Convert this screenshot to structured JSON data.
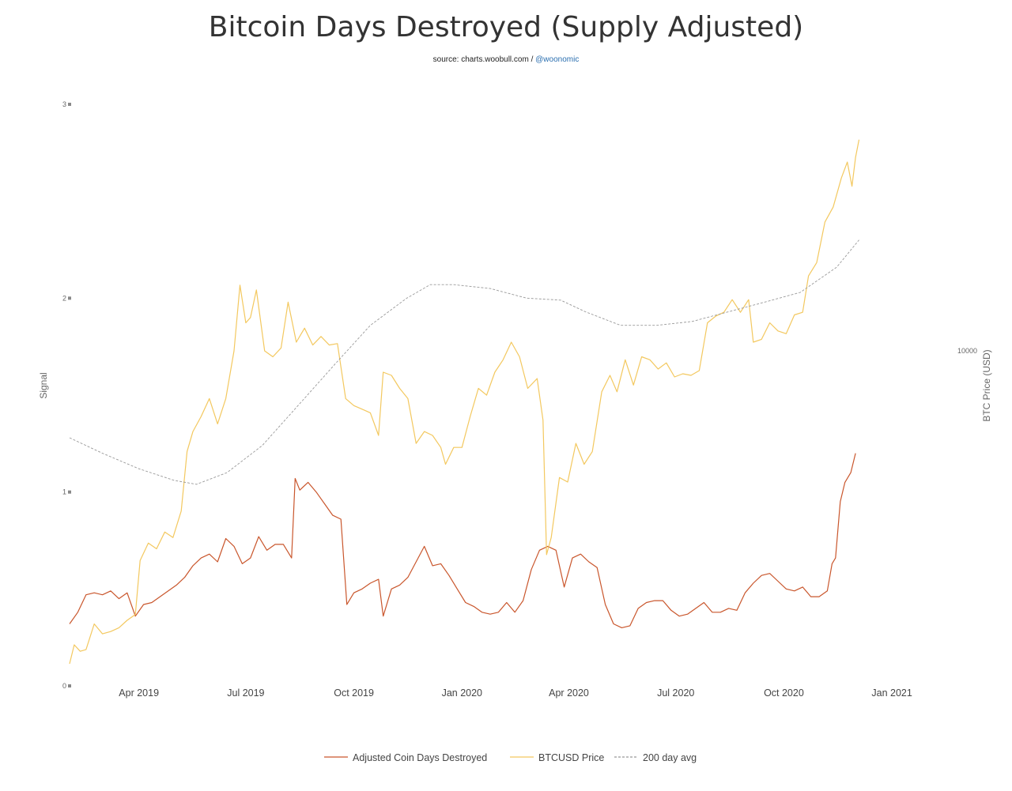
{
  "chart_data": {
    "type": "line",
    "title": "Bitcoin Days Destroyed (Supply Adjusted)",
    "subtitle_source": "source: charts.woobull.com /",
    "subtitle_handle": "@woonomic",
    "ylabel": "Signal",
    "y2label": "BTC Price (USD)",
    "ylim": [
      0,
      3
    ],
    "y_ticks": [
      "0",
      "1",
      "2",
      "3"
    ],
    "y2_ticks": [
      {
        "label": "10000",
        "value": 10000
      }
    ],
    "y2_scale": "log",
    "y2lim": [
      3200,
      25200
    ],
    "xlim": [
      "2019-02-01",
      "2021-02-15"
    ],
    "x_ticks": [
      {
        "label": "Apr 2019",
        "date": "2019-04-01"
      },
      {
        "label": "Jul 2019",
        "date": "2019-07-01"
      },
      {
        "label": "Oct 2019",
        "date": "2019-10-01"
      },
      {
        "label": "Jan 2020",
        "date": "2020-01-01"
      },
      {
        "label": "Apr 2020",
        "date": "2020-04-01"
      },
      {
        "label": "Jul 2020",
        "date": "2020-07-01"
      },
      {
        "label": "Oct 2020",
        "date": "2020-10-01"
      },
      {
        "label": "Jan 2021",
        "date": "2021-01-01"
      }
    ],
    "legend_position": "bottom",
    "series": [
      {
        "name": "Adjusted Coin Days Destroyed",
        "axis": "left",
        "color": "#c9562c",
        "points": [
          [
            "2019-02-01",
            0.32
          ],
          [
            "2019-02-08",
            0.38
          ],
          [
            "2019-02-15",
            0.47
          ],
          [
            "2019-02-22",
            0.48
          ],
          [
            "2019-03-01",
            0.47
          ],
          [
            "2019-03-08",
            0.49
          ],
          [
            "2019-03-15",
            0.45
          ],
          [
            "2019-03-22",
            0.48
          ],
          [
            "2019-03-29",
            0.36
          ],
          [
            "2019-04-05",
            0.42
          ],
          [
            "2019-04-12",
            0.43
          ],
          [
            "2019-04-19",
            0.46
          ],
          [
            "2019-04-26",
            0.49
          ],
          [
            "2019-05-03",
            0.52
          ],
          [
            "2019-05-10",
            0.56
          ],
          [
            "2019-05-17",
            0.62
          ],
          [
            "2019-05-24",
            0.66
          ],
          [
            "2019-05-31",
            0.68
          ],
          [
            "2019-06-07",
            0.64
          ],
          [
            "2019-06-14",
            0.76
          ],
          [
            "2019-06-21",
            0.72
          ],
          [
            "2019-06-28",
            0.63
          ],
          [
            "2019-07-05",
            0.66
          ],
          [
            "2019-07-12",
            0.77
          ],
          [
            "2019-07-19",
            0.7
          ],
          [
            "2019-07-26",
            0.73
          ],
          [
            "2019-08-02",
            0.73
          ],
          [
            "2019-08-09",
            0.66
          ],
          [
            "2019-08-12",
            1.07
          ],
          [
            "2019-08-16",
            1.01
          ],
          [
            "2019-08-23",
            1.05
          ],
          [
            "2019-08-30",
            1.0
          ],
          [
            "2019-09-06",
            0.94
          ],
          [
            "2019-09-13",
            0.88
          ],
          [
            "2019-09-20",
            0.86
          ],
          [
            "2019-09-25",
            0.42
          ],
          [
            "2019-10-01",
            0.48
          ],
          [
            "2019-10-08",
            0.5
          ],
          [
            "2019-10-15",
            0.53
          ],
          [
            "2019-10-22",
            0.55
          ],
          [
            "2019-10-26",
            0.36
          ],
          [
            "2019-11-02",
            0.5
          ],
          [
            "2019-11-09",
            0.52
          ],
          [
            "2019-11-16",
            0.56
          ],
          [
            "2019-11-23",
            0.64
          ],
          [
            "2019-11-30",
            0.72
          ],
          [
            "2019-12-07",
            0.62
          ],
          [
            "2019-12-14",
            0.63
          ],
          [
            "2019-12-21",
            0.57
          ],
          [
            "2019-12-28",
            0.5
          ],
          [
            "2020-01-04",
            0.43
          ],
          [
            "2020-01-11",
            0.41
          ],
          [
            "2020-01-18",
            0.38
          ],
          [
            "2020-01-25",
            0.37
          ],
          [
            "2020-02-01",
            0.38
          ],
          [
            "2020-02-08",
            0.43
          ],
          [
            "2020-02-15",
            0.38
          ],
          [
            "2020-02-22",
            0.44
          ],
          [
            "2020-02-29",
            0.6
          ],
          [
            "2020-03-07",
            0.7
          ],
          [
            "2020-03-14",
            0.72
          ],
          [
            "2020-03-21",
            0.7
          ],
          [
            "2020-03-28",
            0.51
          ],
          [
            "2020-04-04",
            0.66
          ],
          [
            "2020-04-11",
            0.68
          ],
          [
            "2020-04-18",
            0.64
          ],
          [
            "2020-04-25",
            0.61
          ],
          [
            "2020-05-02",
            0.42
          ],
          [
            "2020-05-09",
            0.32
          ],
          [
            "2020-05-16",
            0.3
          ],
          [
            "2020-05-23",
            0.31
          ],
          [
            "2020-05-30",
            0.4
          ],
          [
            "2020-06-06",
            0.43
          ],
          [
            "2020-06-13",
            0.44
          ],
          [
            "2020-06-20",
            0.44
          ],
          [
            "2020-06-27",
            0.39
          ],
          [
            "2020-07-04",
            0.36
          ],
          [
            "2020-07-11",
            0.37
          ],
          [
            "2020-07-18",
            0.4
          ],
          [
            "2020-07-25",
            0.43
          ],
          [
            "2020-08-01",
            0.38
          ],
          [
            "2020-08-08",
            0.38
          ],
          [
            "2020-08-15",
            0.4
          ],
          [
            "2020-08-22",
            0.39
          ],
          [
            "2020-08-29",
            0.48
          ],
          [
            "2020-09-05",
            0.53
          ],
          [
            "2020-09-12",
            0.57
          ],
          [
            "2020-09-19",
            0.58
          ],
          [
            "2020-09-26",
            0.54
          ],
          [
            "2020-10-03",
            0.5
          ],
          [
            "2020-10-10",
            0.49
          ],
          [
            "2020-10-17",
            0.51
          ],
          [
            "2020-10-24",
            0.46
          ],
          [
            "2020-10-31",
            0.46
          ],
          [
            "2020-11-07",
            0.49
          ],
          [
            "2020-11-11",
            0.63
          ],
          [
            "2020-11-14",
            0.66
          ],
          [
            "2020-11-18",
            0.95
          ],
          [
            "2020-11-22",
            1.05
          ],
          [
            "2020-11-27",
            1.1
          ],
          [
            "2020-12-01",
            1.2
          ]
        ]
      },
      {
        "name": "BTCUSD Price",
        "axis": "right",
        "color": "#f3c85f",
        "points": [
          [
            "2019-02-01",
            3450
          ],
          [
            "2019-02-05",
            3680
          ],
          [
            "2019-02-10",
            3600
          ],
          [
            "2019-02-15",
            3620
          ],
          [
            "2019-02-22",
            3950
          ],
          [
            "2019-03-01",
            3820
          ],
          [
            "2019-03-08",
            3850
          ],
          [
            "2019-03-15",
            3900
          ],
          [
            "2019-03-22",
            4000
          ],
          [
            "2019-03-29",
            4080
          ],
          [
            "2019-04-02",
            4900
          ],
          [
            "2019-04-09",
            5200
          ],
          [
            "2019-04-16",
            5100
          ],
          [
            "2019-04-23",
            5400
          ],
          [
            "2019-04-30",
            5300
          ],
          [
            "2019-05-07",
            5800
          ],
          [
            "2019-05-12",
            7100
          ],
          [
            "2019-05-17",
            7600
          ],
          [
            "2019-05-24",
            8000
          ],
          [
            "2019-05-31",
            8500
          ],
          [
            "2019-06-07",
            7800
          ],
          [
            "2019-06-14",
            8500
          ],
          [
            "2019-06-21",
            10000
          ],
          [
            "2019-06-26",
            12500
          ],
          [
            "2019-07-01",
            11000
          ],
          [
            "2019-07-05",
            11200
          ],
          [
            "2019-07-10",
            12300
          ],
          [
            "2019-07-17",
            10000
          ],
          [
            "2019-07-24",
            9800
          ],
          [
            "2019-07-31",
            10100
          ],
          [
            "2019-08-06",
            11800
          ],
          [
            "2019-08-13",
            10300
          ],
          [
            "2019-08-20",
            10800
          ],
          [
            "2019-08-27",
            10200
          ],
          [
            "2019-09-03",
            10500
          ],
          [
            "2019-09-10",
            10200
          ],
          [
            "2019-09-17",
            10250
          ],
          [
            "2019-09-24",
            8500
          ],
          [
            "2019-10-01",
            8300
          ],
          [
            "2019-10-08",
            8200
          ],
          [
            "2019-10-15",
            8100
          ],
          [
            "2019-10-22",
            7500
          ],
          [
            "2019-10-26",
            9300
          ],
          [
            "2019-11-02",
            9200
          ],
          [
            "2019-11-09",
            8800
          ],
          [
            "2019-11-16",
            8500
          ],
          [
            "2019-11-23",
            7300
          ],
          [
            "2019-11-30",
            7600
          ],
          [
            "2019-12-07",
            7500
          ],
          [
            "2019-12-14",
            7200
          ],
          [
            "2019-12-18",
            6800
          ],
          [
            "2019-12-25",
            7200
          ],
          [
            "2020-01-01",
            7200
          ],
          [
            "2020-01-08",
            8000
          ],
          [
            "2020-01-15",
            8800
          ],
          [
            "2020-01-22",
            8600
          ],
          [
            "2020-01-29",
            9300
          ],
          [
            "2020-02-05",
            9700
          ],
          [
            "2020-02-12",
            10300
          ],
          [
            "2020-02-19",
            9800
          ],
          [
            "2020-02-26",
            8800
          ],
          [
            "2020-03-05",
            9100
          ],
          [
            "2020-03-10",
            7900
          ],
          [
            "2020-03-13",
            5000
          ],
          [
            "2020-03-17",
            5300
          ],
          [
            "2020-03-24",
            6500
          ],
          [
            "2020-03-31",
            6400
          ],
          [
            "2020-04-07",
            7300
          ],
          [
            "2020-04-14",
            6800
          ],
          [
            "2020-04-21",
            7100
          ],
          [
            "2020-04-29",
            8700
          ],
          [
            "2020-05-06",
            9200
          ],
          [
            "2020-05-12",
            8700
          ],
          [
            "2020-05-19",
            9700
          ],
          [
            "2020-05-26",
            8900
          ],
          [
            "2020-06-02",
            9800
          ],
          [
            "2020-06-09",
            9700
          ],
          [
            "2020-06-16",
            9400
          ],
          [
            "2020-06-23",
            9600
          ],
          [
            "2020-06-30",
            9150
          ],
          [
            "2020-07-07",
            9250
          ],
          [
            "2020-07-14",
            9200
          ],
          [
            "2020-07-21",
            9350
          ],
          [
            "2020-07-28",
            11000
          ],
          [
            "2020-08-04",
            11250
          ],
          [
            "2020-08-11",
            11400
          ],
          [
            "2020-08-18",
            11900
          ],
          [
            "2020-08-25",
            11400
          ],
          [
            "2020-09-01",
            11900
          ],
          [
            "2020-09-05",
            10300
          ],
          [
            "2020-09-12",
            10400
          ],
          [
            "2020-09-19",
            11000
          ],
          [
            "2020-09-26",
            10700
          ],
          [
            "2020-10-03",
            10600
          ],
          [
            "2020-10-10",
            11300
          ],
          [
            "2020-10-17",
            11400
          ],
          [
            "2020-10-22",
            12900
          ],
          [
            "2020-10-29",
            13500
          ],
          [
            "2020-11-05",
            15500
          ],
          [
            "2020-11-12",
            16300
          ],
          [
            "2020-11-19",
            18000
          ],
          [
            "2020-11-24",
            19000
          ],
          [
            "2020-11-28",
            17500
          ],
          [
            "2020-12-01",
            19300
          ],
          [
            "2020-12-04",
            20500
          ]
        ]
      },
      {
        "name": "200 day avg",
        "axis": "left",
        "color": "#999999",
        "dash": true,
        "points": [
          [
            "2019-02-01",
            1.28
          ],
          [
            "2019-03-01",
            1.2
          ],
          [
            "2019-04-01",
            1.12
          ],
          [
            "2019-05-01",
            1.06
          ],
          [
            "2019-05-20",
            1.04
          ],
          [
            "2019-06-15",
            1.1
          ],
          [
            "2019-07-15",
            1.24
          ],
          [
            "2019-08-15",
            1.45
          ],
          [
            "2019-09-15",
            1.66
          ],
          [
            "2019-10-15",
            1.86
          ],
          [
            "2019-11-15",
            2.0
          ],
          [
            "2019-12-05",
            2.07
          ],
          [
            "2019-12-25",
            2.07
          ],
          [
            "2020-01-25",
            2.05
          ],
          [
            "2020-02-25",
            2.0
          ],
          [
            "2020-03-25",
            1.99
          ],
          [
            "2020-04-15",
            1.93
          ],
          [
            "2020-05-15",
            1.86
          ],
          [
            "2020-06-15",
            1.86
          ],
          [
            "2020-07-15",
            1.88
          ],
          [
            "2020-08-15",
            1.93
          ],
          [
            "2020-09-15",
            1.98
          ],
          [
            "2020-10-15",
            2.03
          ],
          [
            "2020-11-15",
            2.16
          ],
          [
            "2020-12-04",
            2.3
          ]
        ]
      }
    ]
  }
}
